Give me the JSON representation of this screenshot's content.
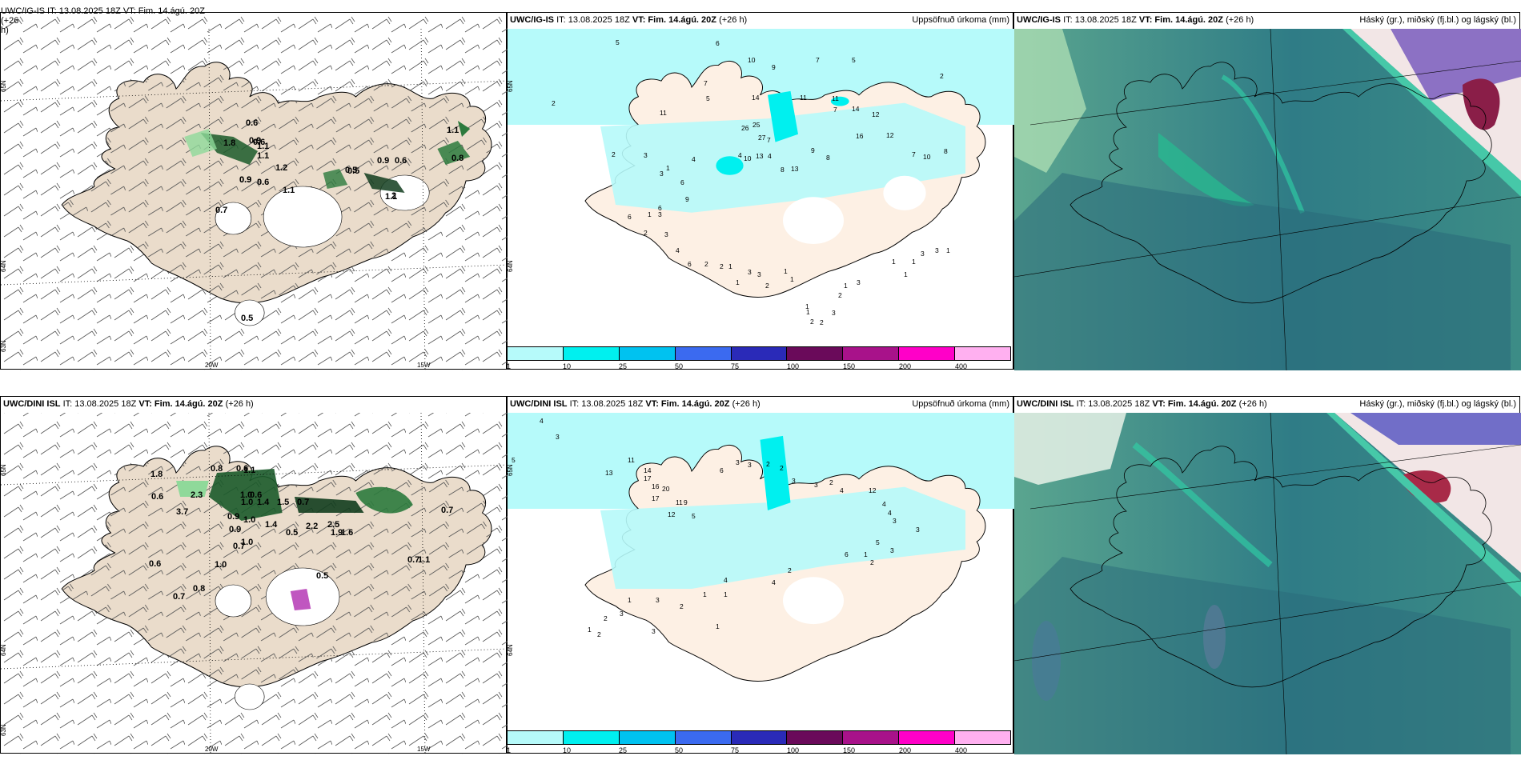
{
  "colors": {
    "land": "#eadccb",
    "precip_scale": [
      "#b6fafa",
      "#00f0ef",
      "#00c2f0",
      "#3b6af0",
      "#2a2ab8",
      "#6a0a5a",
      "#a8128a",
      "#ff00c8",
      "#ffb0f0"
    ]
  },
  "panels": {
    "top_left": {
      "model_title": "UWC/IG-IS",
      "cut_title": "UWC/IG-IS IT: 13.08.2025 18Z VT: Fim. 14.ágú. 20Z (+26",
      "cut_title_2": "h)",
      "labels": [
        "1.8",
        "0.9",
        "1.1",
        "1.2",
        "0.6",
        "1.1",
        "0.5",
        "0.9",
        "0.6",
        "1.1",
        "0.9",
        "0.7",
        "0.6",
        "0.8",
        "0.5",
        "1.1",
        "0.6",
        "2",
        "1.1",
        "0.9",
        "0.5"
      ],
      "lat_labels": [
        "65N",
        "64N",
        "63N"
      ],
      "lon_labels": [
        "20W",
        "15W"
      ]
    },
    "top_mid": {
      "model_title": "UWC/IG-IS",
      "rest_title": "IT: 13.08.2025 18Z",
      "vt": "VT: Fim. 14.ágú. 20Z",
      "lead": "(+26 h)",
      "right_label": "Uppsöfnuð úrkoma (mm)",
      "labels": [
        "5",
        "6",
        "10",
        "9",
        "7",
        "5",
        "2",
        "7",
        "5",
        "14",
        "11",
        "11",
        "7",
        "2",
        "11",
        "14",
        "12",
        "12",
        "7",
        "10",
        "8",
        "26",
        "25",
        "27",
        "10",
        "16",
        "9",
        "8",
        "8",
        "13",
        "13",
        "7",
        "4",
        "4",
        "4",
        "3",
        "2",
        "1",
        "3",
        "6",
        "9",
        "6",
        "3",
        "1",
        "6",
        "2",
        "3",
        "4",
        "6",
        "2",
        "2",
        "1",
        "1",
        "3",
        "3",
        "2",
        "1",
        "1",
        "1",
        "1",
        "2",
        "2",
        "3",
        "2",
        "1",
        "3",
        "1",
        "1",
        "1",
        "3",
        "3",
        "1"
      ],
      "lat_labels": [
        "65N",
        "64N"
      ]
    },
    "top_right": {
      "model_title": "UWC/IG-IS",
      "rest_title": "IT: 13.08.2025 18Z",
      "vt": "VT: Fim. 14.ágú. 20Z",
      "lead": "(+26 h)",
      "right_label": "Háský (gr.), miðský (fj.bl.) og lágský (bl.)"
    },
    "bot_left": {
      "model_title": "UWC/DINI ISL",
      "rest_title": "IT: 13.08.2025 18Z",
      "vt": "VT: Fim. 14.ágú. 20Z",
      "lead": "(+26 h)",
      "labels": [
        "1.8",
        "0.6",
        "0.8",
        "0.6",
        "2.3",
        "1.0",
        "1.1",
        "0.6",
        "0.9",
        "1.0",
        "1.4",
        "1.0",
        "1.5",
        "0.7",
        "0.5",
        "2.2",
        "2.5",
        "1.9",
        "1.6",
        "0.7",
        "0.9",
        "1.4",
        "1.0",
        "0.7",
        "0.6",
        "1.0",
        "0.8",
        "0.7",
        "0.5",
        "0.7",
        "1.1",
        "3.7"
      ],
      "lat_labels": [
        "65N",
        "64N",
        "63N"
      ],
      "lon_labels": [
        "20W",
        "15W"
      ]
    },
    "bot_mid": {
      "model_title": "UWC/DINI ISL",
      "rest_title": "IT: 13.08.2025 18Z",
      "vt": "VT: Fim. 14.ágú. 20Z",
      "lead": "(+26 h)",
      "right_label": "Uppsöfnuð úrkoma (mm)",
      "labels": [
        "4",
        "3",
        "5",
        "13",
        "11",
        "14",
        "17",
        "16",
        "20",
        "17",
        "11",
        "9",
        "12",
        "5",
        "6",
        "3",
        "3",
        "2",
        "2",
        "3",
        "3",
        "2",
        "4",
        "12",
        "4",
        "4",
        "3",
        "3",
        "5",
        "6",
        "3",
        "1",
        "2",
        "2",
        "4",
        "4",
        "1",
        "1",
        "2",
        "3",
        "1",
        "3",
        "2",
        "1",
        "2",
        "3",
        "1"
      ],
      "lat_labels": [
        "65N",
        "64N"
      ]
    },
    "bot_right": {
      "model_title": "UWC/DINI ISL",
      "rest_title": "IT: 13.08.2025 18Z",
      "vt": "VT: Fim. 14.ágú. 20Z",
      "lead": "(+26 h)",
      "right_label": "Háský (gr.), miðský (fj.bl.) og lágský (bl.)"
    }
  },
  "legend": {
    "ticks": [
      "1",
      "10",
      "25",
      "50",
      "75",
      "100",
      "150",
      "200",
      "400"
    ]
  }
}
